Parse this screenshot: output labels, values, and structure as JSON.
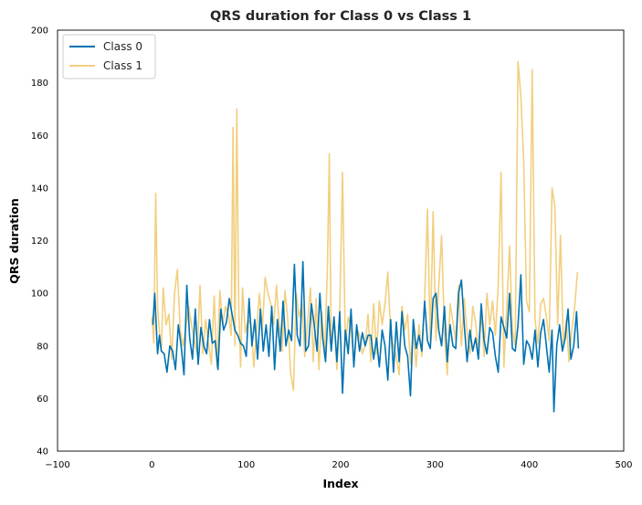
{
  "colors": {
    "class0": "#0072b2",
    "class1": "#e69f00",
    "frame": "#000000",
    "legend_border": "#cccccc"
  },
  "chart_data": {
    "type": "line",
    "title": "QRS duration for Class 0 vs Class 1",
    "xlabel": "Index",
    "ylabel": "QRS duration",
    "xlim": [
      -100,
      500
    ],
    "ylim": [
      40,
      200
    ],
    "xticks": [
      -100,
      0,
      100,
      200,
      300,
      400,
      500
    ],
    "yticks": [
      40,
      60,
      80,
      100,
      120,
      140,
      160,
      180,
      200
    ],
    "xtick_labels": [
      "−100",
      "0",
      "100",
      "200",
      "300",
      "400",
      "500"
    ],
    "ytick_labels": [
      "40",
      "60",
      "80",
      "100",
      "120",
      "140",
      "160",
      "180",
      "200"
    ],
    "grid": false,
    "legend_position": "top-left",
    "series": [
      {
        "name": "Class 0",
        "color": "#0072b2",
        "opacity": 1.0,
        "x": [
          1,
          3,
          6,
          8,
          10,
          13,
          16,
          19,
          22,
          25,
          28,
          31,
          34,
          37,
          40,
          43,
          46,
          49,
          52,
          55,
          58,
          61,
          64,
          67,
          70,
          73,
          76,
          79,
          82,
          85,
          88,
          91,
          94,
          97,
          100,
          103,
          106,
          109,
          112,
          115,
          118,
          121,
          124,
          127,
          130,
          133,
          136,
          139,
          142,
          145,
          148,
          151,
          154,
          157,
          160,
          163,
          166,
          169,
          172,
          175,
          178,
          181,
          184,
          187,
          190,
          193,
          196,
          199,
          202,
          205,
          208,
          211,
          214,
          217,
          220,
          223,
          226,
          229,
          232,
          235,
          238,
          241,
          244,
          247,
          250,
          253,
          256,
          259,
          262,
          265,
          268,
          271,
          274,
          277,
          280,
          283,
          286,
          289,
          292,
          295,
          298,
          301,
          304,
          307,
          310,
          313,
          316,
          319,
          322,
          325,
          328,
          331,
          334,
          337,
          340,
          343,
          346,
          349,
          352,
          355,
          358,
          361,
          364,
          367,
          370,
          373,
          376,
          379,
          382,
          385,
          388,
          391,
          394,
          397,
          400,
          403,
          406,
          409,
          412,
          415,
          418,
          421,
          424,
          426,
          429,
          432,
          435,
          438,
          441,
          444,
          447,
          450,
          452
        ],
        "y": [
          88,
          100,
          77,
          84,
          78,
          77,
          70,
          80,
          78,
          71,
          88,
          80,
          69,
          103,
          83,
          75,
          94,
          73,
          87,
          80,
          77,
          90,
          81,
          82,
          71,
          94,
          86,
          89,
          98,
          92,
          86,
          84,
          81,
          80,
          76,
          98,
          80,
          90,
          75,
          94,
          78,
          88,
          76,
          95,
          71,
          90,
          78,
          97,
          80,
          86,
          82,
          111,
          84,
          80,
          112,
          78,
          80,
          96,
          88,
          78,
          100,
          83,
          74,
          95,
          78,
          91,
          74,
          93,
          62,
          86,
          77,
          94,
          72,
          88,
          78,
          85,
          80,
          84,
          84,
          75,
          83,
          72,
          86,
          80,
          67,
          90,
          70,
          89,
          74,
          93,
          80,
          76,
          61,
          90,
          79,
          84,
          78,
          97,
          82,
          79,
          98,
          100,
          86,
          80,
          95,
          74,
          88,
          80,
          79,
          100,
          105,
          88,
          74,
          86,
          78,
          83,
          75,
          96,
          82,
          77,
          87,
          85,
          76,
          70,
          91,
          87,
          83,
          100,
          79,
          78,
          88,
          107,
          73,
          82,
          80,
          75,
          86,
          72,
          85,
          90,
          80,
          70,
          86,
          55,
          80,
          88,
          78,
          83,
          94,
          75,
          80,
          93,
          79
        ]
      },
      {
        "name": "Class 1",
        "color": "#e69f00",
        "opacity": 0.5,
        "x": [
          0,
          2,
          4,
          6,
          8,
          10,
          12,
          15,
          18,
          21,
          24,
          27,
          30,
          33,
          36,
          39,
          42,
          45,
          48,
          51,
          54,
          57,
          60,
          63,
          66,
          69,
          72,
          75,
          78,
          81,
          84,
          86,
          88,
          90,
          92,
          94,
          96,
          99,
          102,
          105,
          108,
          111,
          114,
          117,
          120,
          123,
          126,
          129,
          132,
          135,
          138,
          141,
          144,
          147,
          150,
          153,
          156,
          159,
          162,
          165,
          168,
          171,
          174,
          177,
          180,
          183,
          186,
          188,
          190,
          193,
          196,
          199,
          202,
          205,
          208,
          211,
          214,
          217,
          220,
          223,
          226,
          229,
          232,
          235,
          238,
          241,
          244,
          247,
          250,
          253,
          256,
          259,
          262,
          265,
          268,
          271,
          274,
          277,
          280,
          283,
          286,
          289,
          292,
          295,
          298,
          301,
          304,
          307,
          310,
          313,
          316,
          319,
          322,
          325,
          328,
          331,
          334,
          337,
          340,
          343,
          346,
          349,
          352,
          355,
          358,
          361,
          364,
          367,
          370,
          373,
          376,
          379,
          382,
          385,
          388,
          391,
          394,
          397,
          400,
          403,
          406,
          409,
          412,
          415,
          418,
          421,
          424,
          427,
          430,
          433,
          436,
          439,
          442,
          445,
          448,
          451
        ],
        "y": [
          91,
          81,
          138,
          95,
          85,
          78,
          102,
          88,
          92,
          75,
          100,
          109,
          86,
          80,
          87,
          95,
          88,
          82,
          77,
          103,
          77,
          90,
          81,
          73,
          99,
          72,
          101,
          88,
          95,
          92,
          84,
          163,
          80,
          170,
          95,
          72,
          102,
          85,
          90,
          88,
          72,
          87,
          100,
          86,
          106,
          100,
          96,
          88,
          103,
          88,
          78,
          101,
          90,
          70,
          63,
          100,
          91,
          96,
          76,
          89,
          102,
          74,
          98,
          71,
          93,
          76,
          110,
          153,
          79,
          91,
          71,
          92,
          146,
          80,
          91,
          87,
          73,
          87,
          84,
          77,
          80,
          92,
          74,
          96,
          77,
          97,
          88,
          96,
          108,
          85,
          80,
          76,
          69,
          95,
          86,
          92,
          73,
          86,
          72,
          88,
          76,
          98,
          132,
          82,
          131,
          82,
          103,
          122,
          85,
          69,
          96,
          89,
          82,
          103,
          80,
          98,
          85,
          77,
          95,
          89,
          78,
          93,
          76,
          100,
          88,
          97,
          84,
          103,
          146,
          72,
          94,
          118,
          86,
          80,
          188,
          175,
          150,
          97,
          93,
          185,
          90,
          81,
          96,
          98,
          91,
          82,
          140,
          133,
          88,
          122,
          80,
          90,
          74,
          86,
          95,
          108
        ]
      }
    ]
  }
}
